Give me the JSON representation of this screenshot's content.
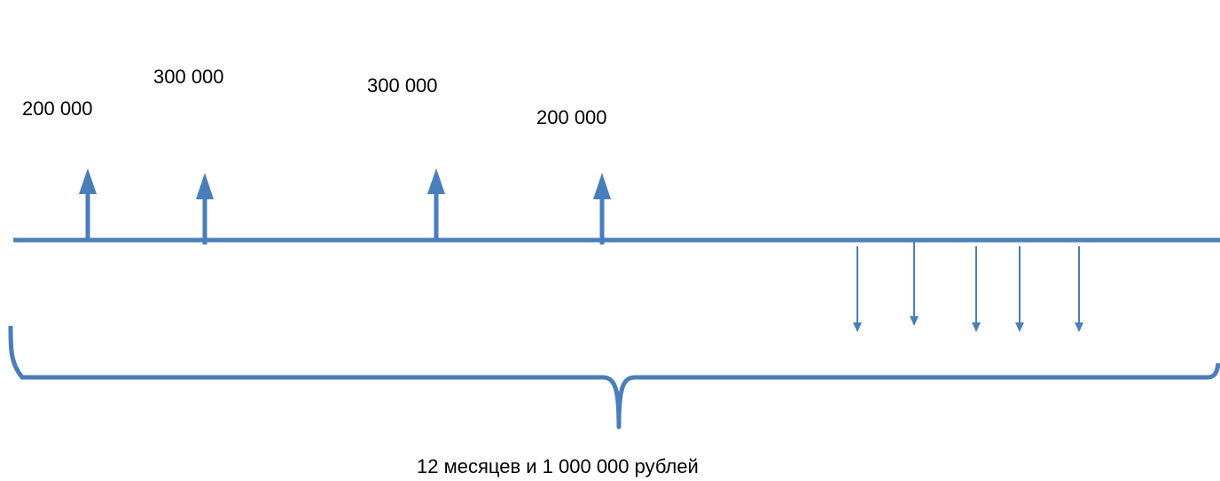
{
  "diagram": {
    "colors": {
      "line": "#4A7EBB",
      "text": "#000000",
      "background": "#FFFFFF"
    },
    "inflows": [
      {
        "label": "200 000"
      },
      {
        "label": "300 000"
      },
      {
        "label": "300 000"
      },
      {
        "label": "200 000"
      }
    ],
    "outflow_count": 5,
    "caption": "12 месяцев и 1 000 000 рублей"
  }
}
